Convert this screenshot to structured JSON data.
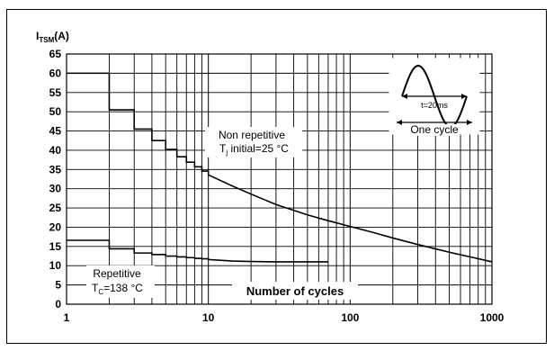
{
  "chart_data": {
    "type": "line",
    "x_scale": "log",
    "xlim": [
      1,
      1000
    ],
    "ylim": [
      0,
      65
    ],
    "y_ticks": [
      0,
      5,
      10,
      15,
      20,
      25,
      30,
      35,
      40,
      45,
      50,
      55,
      60,
      65
    ],
    "x_tick_labels": [
      "1",
      "10",
      "100",
      "1000"
    ],
    "ylabel": "I",
    "ylabel_sub": "TSM",
    "ylabel_unit": "(A)",
    "xlabel": "Number of cycles",
    "grid": true,
    "series": [
      {
        "label_lines": [
          "Non repetitive",
          "T",
          "j",
          " initial=25 °C"
        ],
        "steps": [
          [
            1,
            60
          ],
          [
            2,
            50.5
          ],
          [
            3,
            45.5
          ],
          [
            4,
            42.5
          ],
          [
            5,
            40.2
          ],
          [
            6,
            38.3
          ],
          [
            7,
            36.9
          ],
          [
            8,
            35.7
          ],
          [
            9,
            34.6
          ],
          [
            10,
            33.6
          ]
        ],
        "curve": [
          [
            10,
            33.6
          ],
          [
            15,
            30.6
          ],
          [
            20,
            28.6
          ],
          [
            30,
            25.9
          ],
          [
            50,
            23.2
          ],
          [
            70,
            21.7
          ],
          [
            100,
            20.2
          ],
          [
            150,
            18.5
          ],
          [
            200,
            17.2
          ],
          [
            300,
            15.5
          ],
          [
            500,
            13.5
          ],
          [
            700,
            12.3
          ],
          [
            1000,
            11
          ]
        ]
      },
      {
        "label_lines": [
          "Repetitive",
          "T",
          "C",
          "=138 °C"
        ],
        "steps": [
          [
            1,
            16.6
          ],
          [
            2,
            14.4
          ],
          [
            3,
            13.3
          ],
          [
            4,
            12.9
          ],
          [
            5,
            12.5
          ],
          [
            6,
            12.3
          ],
          [
            7,
            12.1
          ],
          [
            8,
            11.9
          ],
          [
            9,
            11.8
          ],
          [
            10,
            11.6
          ]
        ],
        "curve": [
          [
            10,
            11.6
          ],
          [
            15,
            11.2
          ],
          [
            20,
            11.1
          ],
          [
            30,
            11
          ],
          [
            50,
            11
          ],
          [
            70,
            11
          ]
        ]
      }
    ],
    "inset": {
      "period_label": "t=20ms",
      "cycle_label": "One cycle"
    }
  }
}
